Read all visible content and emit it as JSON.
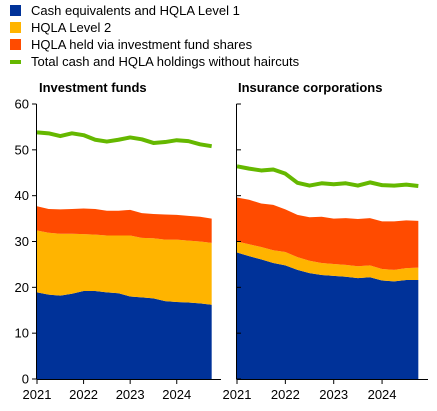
{
  "legend": [
    {
      "label": "Cash equivalents and HQLA Level 1",
      "color": "#003299",
      "kind": "box"
    },
    {
      "label": "HQLA Level 2",
      "color": "#FFB400",
      "kind": "box"
    },
    {
      "label": "HQLA held via investment fund shares",
      "color": "#FF4B00",
      "kind": "box"
    },
    {
      "label": "Total cash and HQLA holdings without haircuts",
      "color": "#65B800",
      "kind": "line"
    }
  ],
  "chart_data": [
    {
      "type": "area",
      "title": "Investment funds",
      "stacked": true,
      "x": [
        2021.0,
        2021.25,
        2021.5,
        2021.75,
        2022.0,
        2022.25,
        2022.5,
        2022.75,
        2023.0,
        2023.25,
        2023.5,
        2023.75,
        2024.0,
        2024.25,
        2024.5,
        2024.75
      ],
      "x_ticks": [
        "2021",
        "2022",
        "2023",
        "2024"
      ],
      "ylim": [
        0,
        60
      ],
      "y_ticks": [
        0,
        10,
        20,
        30,
        40,
        50,
        60
      ],
      "grid": false,
      "series": [
        {
          "name": "Cash equivalents and HQLA Level 1",
          "type": "area",
          "color": "#003299",
          "values": [
            18.9,
            18.4,
            18.2,
            18.6,
            19.2,
            19.2,
            18.9,
            18.7,
            18.0,
            17.8,
            17.6,
            17.0,
            16.8,
            16.7,
            16.5,
            16.2
          ]
        },
        {
          "name": "HQLA Level 2",
          "type": "area",
          "color": "#FFB400",
          "values": [
            13.5,
            13.5,
            13.5,
            13.1,
            12.4,
            12.3,
            12.4,
            12.6,
            13.3,
            13.0,
            13.1,
            13.4,
            13.6,
            13.5,
            13.5,
            13.5
          ]
        },
        {
          "name": "HQLA held via investment fund shares",
          "type": "area",
          "color": "#FF4B00",
          "values": [
            5.3,
            5.2,
            5.3,
            5.4,
            5.6,
            5.6,
            5.4,
            5.4,
            5.6,
            5.4,
            5.3,
            5.5,
            5.4,
            5.4,
            5.4,
            5.3
          ]
        },
        {
          "name": "Total cash and HQLA holdings without haircuts",
          "type": "line",
          "color": "#65B800",
          "values": [
            53.8,
            53.6,
            53.0,
            53.6,
            53.2,
            52.2,
            51.8,
            52.2,
            52.7,
            52.3,
            51.5,
            51.7,
            52.1,
            51.9,
            51.2,
            50.8
          ]
        }
      ]
    },
    {
      "type": "area",
      "title": "Insurance corporations",
      "stacked": true,
      "x": [
        2021.0,
        2021.25,
        2021.5,
        2021.75,
        2022.0,
        2022.25,
        2022.5,
        2022.75,
        2023.0,
        2023.25,
        2023.5,
        2023.75,
        2024.0,
        2024.25,
        2024.5,
        2024.75
      ],
      "x_ticks": [
        "2021",
        "2022",
        "2023",
        "2024"
      ],
      "ylim": [
        0,
        60
      ],
      "y_ticks": [
        0,
        10,
        20,
        30,
        40,
        50,
        60
      ],
      "grid": false,
      "series": [
        {
          "name": "Cash equivalents and HQLA Level 1",
          "type": "area",
          "color": "#003299",
          "values": [
            27.6,
            26.8,
            26.1,
            25.3,
            24.8,
            23.8,
            23.1,
            22.7,
            22.5,
            22.3,
            22.0,
            22.2,
            21.5,
            21.3,
            21.6,
            21.6
          ]
        },
        {
          "name": "HQLA Level 2",
          "type": "area",
          "color": "#FFB400",
          "values": [
            2.4,
            2.6,
            2.7,
            2.8,
            2.9,
            2.8,
            2.7,
            2.6,
            2.6,
            2.6,
            2.6,
            2.6,
            2.5,
            2.5,
            2.6,
            2.7
          ]
        },
        {
          "name": "HQLA held via investment fund shares",
          "type": "area",
          "color": "#FF4B00",
          "values": [
            9.6,
            9.7,
            9.5,
            9.9,
            9.3,
            9.2,
            9.5,
            10.1,
            9.9,
            10.2,
            10.3,
            10.3,
            10.4,
            10.6,
            10.4,
            10.2
          ]
        },
        {
          "name": "Total cash and HQLA holdings without haircuts",
          "type": "line",
          "color": "#65B800",
          "values": [
            46.4,
            45.9,
            45.5,
            45.7,
            44.8,
            42.8,
            42.2,
            42.7,
            42.5,
            42.7,
            42.2,
            42.9,
            42.3,
            42.2,
            42.4,
            42.1
          ]
        }
      ]
    }
  ]
}
